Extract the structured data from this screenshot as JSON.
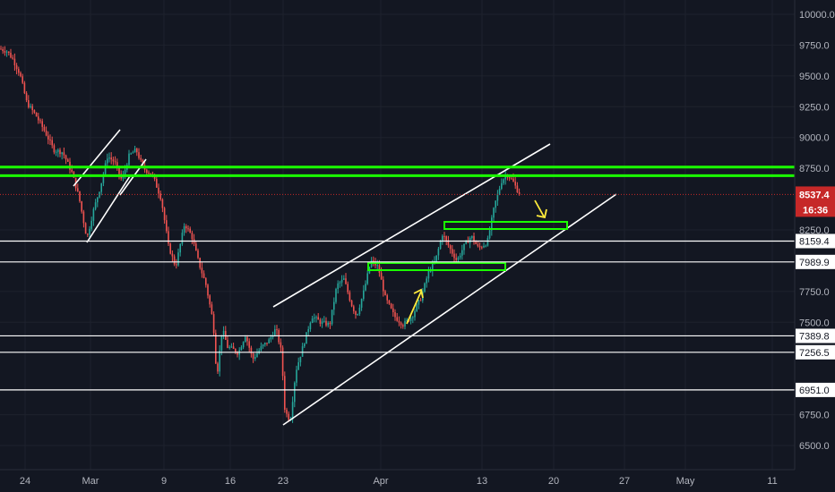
{
  "chart_data": {
    "type": "candlestick",
    "x_tick_labels": [
      "24",
      "Mar",
      "9",
      "16",
      "23",
      "Apr",
      "13",
      "20",
      "27",
      "May",
      "11"
    ],
    "y_tick_labels": [
      "10000.0",
      "9750.0",
      "9500.0",
      "9250.0",
      "9000.0",
      "8750.0",
      "8250.0",
      "7750.0",
      "7500.0",
      "6750.0",
      "6500.0"
    ],
    "y_tick_values": [
      10000,
      9750,
      9500,
      9250,
      9000,
      8750,
      8250,
      7750,
      7500,
      6750,
      6500
    ],
    "ylim": [
      6360,
      10090
    ],
    "current_price": {
      "value": 8537.4,
      "label": "8537.4",
      "countdown": "16:36",
      "color": "#c62828"
    },
    "horizontal_levels": [
      {
        "value": 8159.4,
        "label": "8159.4"
      },
      {
        "value": 7989.9,
        "label": "7989.9"
      },
      {
        "value": 7389.8,
        "label": "7389.8"
      },
      {
        "value": 7256.5,
        "label": "7256.5"
      },
      {
        "value": 6951.0,
        "label": "6951.0"
      }
    ],
    "resistance_band": {
      "upper": 8760,
      "lower": 8690,
      "color": "#1aff00"
    },
    "colors": {
      "up": "#26a69a",
      "down": "#ef5350",
      "annotation": "#ffffff",
      "arrow": "#ffeb3b",
      "zone": "#1aff00",
      "background": "#131722",
      "axis_text": "#b2b5be"
    }
  }
}
